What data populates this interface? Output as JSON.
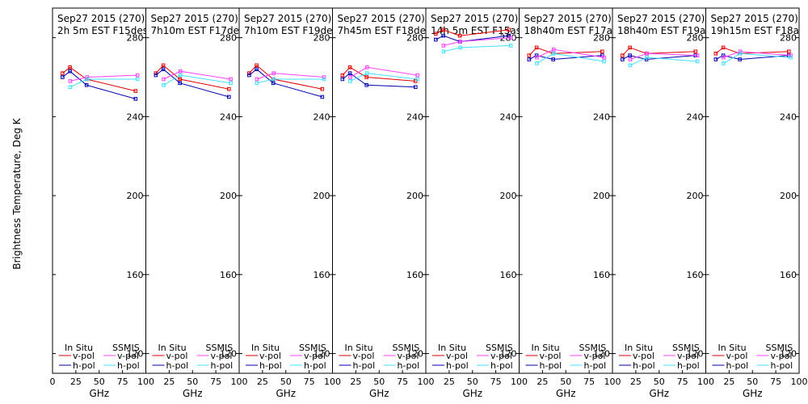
{
  "chart_data": {
    "type": "line",
    "ylabel": "Brightness Temperature, Deg K",
    "xlabel": "GHz",
    "xlim": [
      0,
      100
    ],
    "ylim": [
      110,
      295
    ],
    "yticks": [
      120,
      160,
      200,
      240,
      280
    ],
    "xtick_labels": [
      "0",
      "25",
      "50",
      "75",
      "100"
    ],
    "legend": {
      "insitu_header": "In Situ",
      "ssmis_header": "SSMIS",
      "vpol": "v-pol",
      "hpol": "h-pol"
    },
    "colors": {
      "insitu_v": "#e00000",
      "insitu_h": "#0000b0",
      "ssmis_v": "#ff40ff",
      "ssmis_h": "#40e0ff"
    },
    "panels": [
      {
        "title1": "Sep27 2015 (270)",
        "title2": "2h 5m  EST  F15des",
        "insitu_v": {
          "x": [
            10.7,
            18.7,
            36.5,
            89
          ],
          "y": [
            262,
            265,
            259,
            253
          ]
        },
        "insitu_h": {
          "x": [
            10.7,
            18.7,
            36.5,
            89
          ],
          "y": [
            260,
            263,
            256,
            249
          ]
        },
        "ssmis_v": {
          "x": [
            19,
            37,
            91
          ],
          "y": [
            258,
            260,
            261
          ]
        },
        "ssmis_h": {
          "x": [
            19,
            37,
            91
          ],
          "y": [
            255,
            259,
            259
          ]
        }
      },
      {
        "title1": "Sep27 2015 (270)",
        "title2": "7h10m  EST  F17des",
        "insitu_v": {
          "x": [
            10.7,
            18.7,
            36.5,
            89
          ],
          "y": [
            262,
            266,
            259,
            254
          ]
        },
        "insitu_h": {
          "x": [
            10.7,
            18.7,
            36.5,
            89
          ],
          "y": [
            261,
            264,
            257,
            250
          ]
        },
        "ssmis_v": {
          "x": [
            19,
            37,
            91
          ],
          "y": [
            259,
            263,
            259
          ]
        },
        "ssmis_h": {
          "x": [
            19,
            37,
            91
          ],
          "y": [
            256,
            261,
            257
          ]
        }
      },
      {
        "title1": "Sep27 2015 (270)",
        "title2": "7h10m  EST  F19des",
        "insitu_v": {
          "x": [
            10.7,
            18.7,
            36.5,
            89
          ],
          "y": [
            262,
            266,
            259,
            254
          ]
        },
        "insitu_h": {
          "x": [
            10.7,
            18.7,
            36.5,
            89
          ],
          "y": [
            261,
            264,
            257,
            250
          ]
        },
        "ssmis_v": {
          "x": [
            19,
            37,
            91
          ],
          "y": [
            259,
            262,
            260
          ]
        },
        "ssmis_h": {
          "x": [
            19,
            37,
            91
          ],
          "y": [
            257,
            259,
            259
          ]
        }
      },
      {
        "title1": "Sep27 2015 (270)",
        "title2": "7h45m  EST  F18des",
        "insitu_v": {
          "x": [
            10.7,
            18.7,
            36.5,
            89
          ],
          "y": [
            261,
            265,
            260,
            258
          ]
        },
        "insitu_h": {
          "x": [
            10.7,
            18.7,
            36.5,
            89
          ],
          "y": [
            259,
            262,
            256,
            255
          ]
        },
        "ssmis_v": {
          "x": [
            19,
            37,
            91
          ],
          "y": [
            260,
            265,
            261
          ]
        },
        "ssmis_h": {
          "x": [
            19,
            37,
            91
          ],
          "y": [
            258,
            262,
            259
          ]
        }
      },
      {
        "title1": "Sep27 2015 (270)",
        "title2": "14h 5m  EST  F15asc",
        "insitu_v": {
          "x": [
            10.7,
            18.7,
            36.5,
            89
          ],
          "y": [
            282,
            284,
            281,
            284
          ]
        },
        "insitu_h": {
          "x": [
            10.7,
            18.7,
            36.5,
            89
          ],
          "y": [
            279,
            281,
            278,
            281
          ]
        },
        "ssmis_v": {
          "x": [
            19,
            37,
            91
          ],
          "y": [
            276,
            278,
            280
          ]
        },
        "ssmis_h": {
          "x": [
            19,
            37,
            91
          ],
          "y": [
            273,
            275,
            276
          ]
        }
      },
      {
        "title1": "Sep27 2015 (270)",
        "title2": "18h40m  EST  F17asc",
        "insitu_v": {
          "x": [
            10.7,
            18.7,
            36.5,
            89
          ],
          "y": [
            271,
            275,
            272,
            273
          ]
        },
        "insitu_h": {
          "x": [
            10.7,
            18.7,
            36.5,
            89
          ],
          "y": [
            269,
            271,
            269,
            271
          ]
        },
        "ssmis_v": {
          "x": [
            19,
            37,
            91
          ],
          "y": [
            270,
            274,
            270
          ]
        },
        "ssmis_h": {
          "x": [
            19,
            37,
            91
          ],
          "y": [
            267,
            272,
            268
          ]
        }
      },
      {
        "title1": "Sep27 2015 (270)",
        "title2": "18h40m  EST  F19asc",
        "insitu_v": {
          "x": [
            10.7,
            18.7,
            36.5,
            89
          ],
          "y": [
            271,
            275,
            272,
            273
          ]
        },
        "insitu_h": {
          "x": [
            10.7,
            18.7,
            36.5,
            89
          ],
          "y": [
            269,
            271,
            269,
            271
          ]
        },
        "ssmis_v": {
          "x": [
            19,
            37,
            91
          ],
          "y": [
            269,
            272,
            271
          ]
        },
        "ssmis_h": {
          "x": [
            19,
            37,
            91
          ],
          "y": [
            266,
            270,
            268
          ]
        }
      },
      {
        "title1": "Sep27 2015 (270)",
        "title2": "19h15m  EST  F18asc",
        "insitu_v": {
          "x": [
            10.7,
            18.7,
            36.5,
            89
          ],
          "y": [
            272,
            275,
            272,
            273
          ]
        },
        "insitu_h": {
          "x": [
            10.7,
            18.7,
            36.5,
            89
          ],
          "y": [
            269,
            271,
            269,
            271
          ]
        },
        "ssmis_v": {
          "x": [
            19,
            37,
            91
          ],
          "y": [
            270,
            273,
            271
          ]
        },
        "ssmis_h": {
          "x": [
            19,
            37,
            91
          ],
          "y": [
            267,
            272,
            270
          ]
        }
      }
    ]
  }
}
